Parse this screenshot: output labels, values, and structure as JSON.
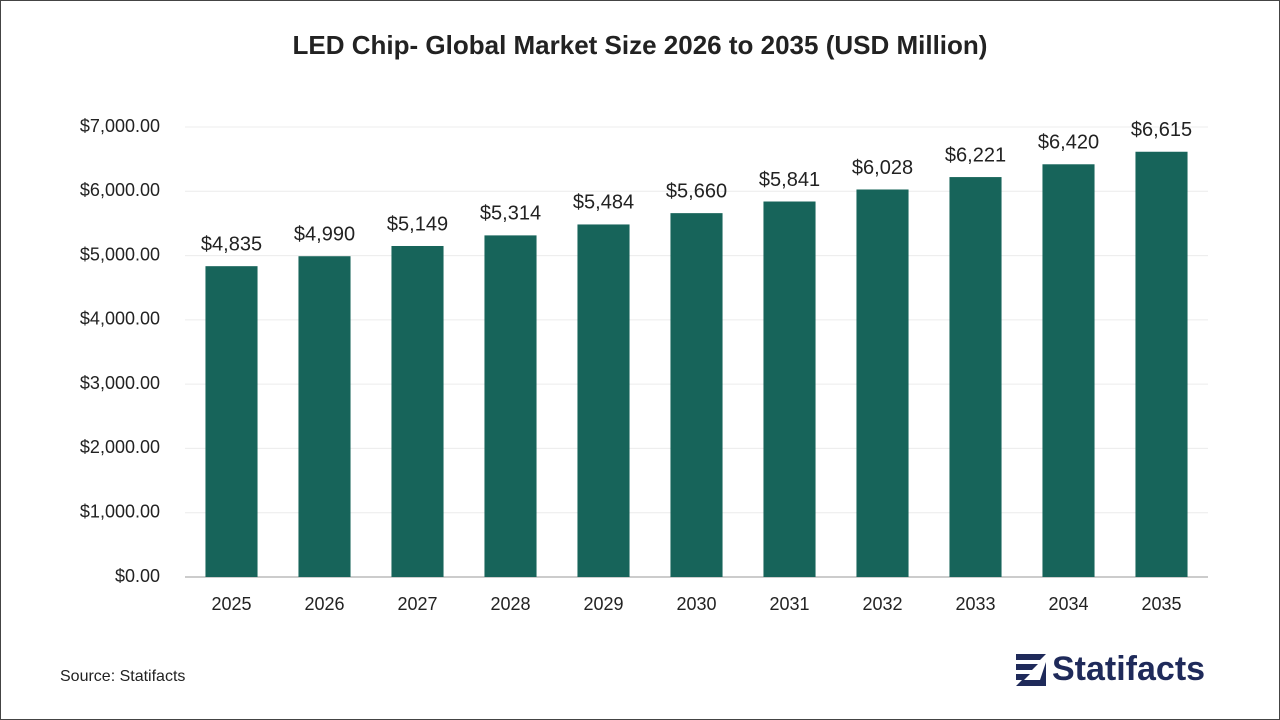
{
  "chart_data": {
    "type": "bar",
    "title": "LED Chip- Global Market Size 2026 to 2035 (USD Million)",
    "categories": [
      "2025",
      "2026",
      "2027",
      "2028",
      "2029",
      "2030",
      "2031",
      "2032",
      "2033",
      "2034",
      "2035"
    ],
    "values": [
      4835,
      4990,
      5149,
      5314,
      5484,
      5660,
      5841,
      6028,
      6221,
      6420,
      6615
    ],
    "value_labels": [
      "$4,835",
      "$4,990",
      "$5,149",
      "$5,314",
      "$5,484",
      "$5,660",
      "$5,841",
      "$6,028",
      "$6,221",
      "$6,420",
      "$6,615"
    ],
    "color": "#17645a",
    "ylim": [
      0,
      7000
    ],
    "yticks": [
      {
        "value": 0,
        "label": "$0.00"
      },
      {
        "value": 1000,
        "label": "$1,000.00"
      },
      {
        "value": 2000,
        "label": "$2,000.00"
      },
      {
        "value": 3000,
        "label": "$3,000.00"
      },
      {
        "value": 4000,
        "label": "$4,000.00"
      },
      {
        "value": 5000,
        "label": "$5,000.00"
      },
      {
        "value": 6000,
        "label": "$6,000.00"
      },
      {
        "value": 7000,
        "label": "$7,000.00"
      }
    ],
    "grid": true,
    "source": "Source: Statifacts",
    "brand": "Statifacts"
  }
}
